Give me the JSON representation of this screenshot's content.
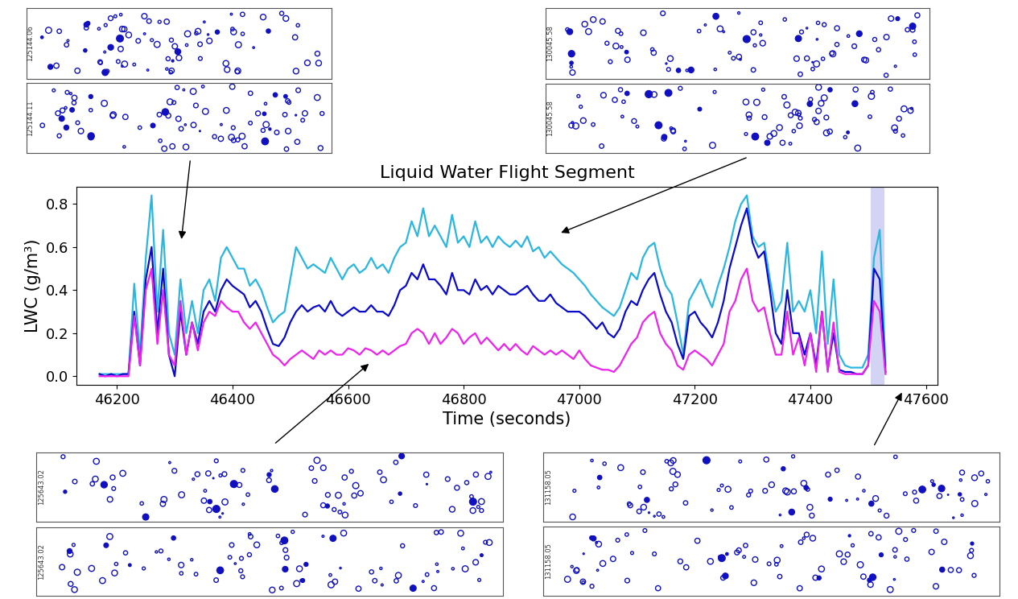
{
  "chart_data": {
    "type": "line",
    "title": "Liquid Water Flight Segment",
    "x_label": "Time (seconds)",
    "y_label": "LWC (g/m³)",
    "x": [
      46170,
      46180,
      46190,
      46200,
      46210,
      46220,
      46230,
      46240,
      46250,
      46260,
      46270,
      46280,
      46290,
      46300,
      46310,
      46320,
      46330,
      46340,
      46350,
      46360,
      46370,
      46380,
      46390,
      46400,
      46410,
      46420,
      46430,
      46440,
      46450,
      46460,
      46470,
      46480,
      46490,
      46500,
      46510,
      46520,
      46530,
      46540,
      46550,
      46560,
      46570,
      46580,
      46590,
      46600,
      46610,
      46620,
      46630,
      46640,
      46650,
      46660,
      46670,
      46680,
      46690,
      46700,
      46710,
      46720,
      46730,
      46740,
      46750,
      46760,
      46770,
      46780,
      46790,
      46800,
      46810,
      46820,
      46830,
      46840,
      46850,
      46860,
      46870,
      46880,
      46890,
      46900,
      46910,
      46920,
      46930,
      46940,
      46950,
      46960,
      46970,
      46980,
      46990,
      47000,
      47010,
      47020,
      47030,
      47040,
      47050,
      47060,
      47070,
      47080,
      47090,
      47100,
      47110,
      47120,
      47130,
      47140,
      47150,
      47160,
      47170,
      47180,
      47190,
      47200,
      47210,
      47220,
      47230,
      47240,
      47250,
      47260,
      47270,
      47280,
      47290,
      47300,
      47310,
      47320,
      47330,
      47340,
      47350,
      47360,
      47370,
      47380,
      47390,
      47400,
      47410,
      47420,
      47430,
      47440,
      47450,
      47460,
      47470,
      47480,
      47490,
      47500,
      47510,
      47520,
      47530
    ],
    "series": [
      {
        "color": "#29b6e0",
        "values": [
          0.01,
          0.01,
          0.01,
          0.01,
          0.01,
          0.01,
          0.43,
          0.1,
          0.55,
          0.84,
          0.3,
          0.68,
          0.2,
          0.1,
          0.45,
          0.2,
          0.35,
          0.2,
          0.4,
          0.45,
          0.35,
          0.55,
          0.6,
          0.55,
          0.5,
          0.5,
          0.42,
          0.45,
          0.4,
          0.32,
          0.25,
          0.28,
          0.3,
          0.45,
          0.6,
          0.55,
          0.5,
          0.52,
          0.5,
          0.48,
          0.55,
          0.5,
          0.45,
          0.5,
          0.52,
          0.48,
          0.5,
          0.55,
          0.5,
          0.52,
          0.48,
          0.55,
          0.6,
          0.62,
          0.72,
          0.65,
          0.78,
          0.65,
          0.7,
          0.65,
          0.6,
          0.75,
          0.62,
          0.65,
          0.6,
          0.72,
          0.62,
          0.65,
          0.6,
          0.65,
          0.62,
          0.6,
          0.63,
          0.6,
          0.65,
          0.58,
          0.6,
          0.55,
          0.58,
          0.55,
          0.52,
          0.5,
          0.48,
          0.45,
          0.42,
          0.38,
          0.35,
          0.32,
          0.3,
          0.28,
          0.32,
          0.4,
          0.48,
          0.45,
          0.55,
          0.6,
          0.62,
          0.5,
          0.42,
          0.38,
          0.25,
          0.1,
          0.35,
          0.4,
          0.45,
          0.38,
          0.32,
          0.42,
          0.5,
          0.6,
          0.72,
          0.8,
          0.84,
          0.65,
          0.6,
          0.62,
          0.45,
          0.3,
          0.35,
          0.62,
          0.3,
          0.35,
          0.3,
          0.4,
          0.2,
          0.58,
          0.15,
          0.45,
          0.1,
          0.05,
          0.04,
          0.04,
          0.04,
          0.1,
          0.55,
          0.68,
          0.05
        ]
      },
      {
        "color": "#0a0acc",
        "values": [
          0.01,
          0,
          0.01,
          0,
          0.01,
          0.01,
          0.3,
          0.05,
          0.45,
          0.6,
          0.2,
          0.5,
          0.1,
          0.0,
          0.3,
          0.1,
          0.25,
          0.15,
          0.3,
          0.35,
          0.3,
          0.4,
          0.45,
          0.42,
          0.4,
          0.38,
          0.32,
          0.35,
          0.3,
          0.22,
          0.15,
          0.14,
          0.18,
          0.25,
          0.3,
          0.33,
          0.3,
          0.32,
          0.33,
          0.3,
          0.35,
          0.3,
          0.28,
          0.3,
          0.32,
          0.3,
          0.3,
          0.33,
          0.3,
          0.3,
          0.28,
          0.33,
          0.4,
          0.42,
          0.48,
          0.45,
          0.52,
          0.45,
          0.45,
          0.42,
          0.38,
          0.48,
          0.4,
          0.4,
          0.38,
          0.45,
          0.4,
          0.42,
          0.38,
          0.42,
          0.4,
          0.38,
          0.38,
          0.4,
          0.42,
          0.38,
          0.35,
          0.35,
          0.38,
          0.34,
          0.32,
          0.3,
          0.3,
          0.3,
          0.28,
          0.25,
          0.22,
          0.25,
          0.2,
          0.18,
          0.22,
          0.3,
          0.35,
          0.33,
          0.4,
          0.45,
          0.48,
          0.38,
          0.3,
          0.25,
          0.15,
          0.08,
          0.28,
          0.3,
          0.25,
          0.22,
          0.18,
          0.25,
          0.35,
          0.5,
          0.6,
          0.7,
          0.78,
          0.62,
          0.55,
          0.58,
          0.4,
          0.2,
          0.15,
          0.4,
          0.2,
          0.2,
          0.1,
          0.2,
          0.05,
          0.3,
          0.03,
          0.2,
          0.03,
          0.02,
          0.02,
          0.01,
          0.01,
          0.05,
          0.5,
          0.45,
          0.02
        ]
      },
      {
        "color": "#ee22ee",
        "values": [
          0,
          0,
          0,
          0,
          0,
          0,
          0.28,
          0.05,
          0.4,
          0.5,
          0.15,
          0.4,
          0.1,
          0.05,
          0.35,
          0.1,
          0.25,
          0.12,
          0.25,
          0.3,
          0.28,
          0.35,
          0.32,
          0.3,
          0.3,
          0.25,
          0.22,
          0.25,
          0.2,
          0.15,
          0.1,
          0.08,
          0.05,
          0.08,
          0.1,
          0.12,
          0.1,
          0.08,
          0.12,
          0.1,
          0.12,
          0.1,
          0.1,
          0.13,
          0.12,
          0.1,
          0.13,
          0.12,
          0.1,
          0.12,
          0.1,
          0.12,
          0.14,
          0.15,
          0.2,
          0.22,
          0.2,
          0.15,
          0.2,
          0.15,
          0.18,
          0.22,
          0.2,
          0.15,
          0.18,
          0.2,
          0.15,
          0.18,
          0.15,
          0.12,
          0.15,
          0.12,
          0.15,
          0.12,
          0.1,
          0.14,
          0.12,
          0.1,
          0.12,
          0.1,
          0.12,
          0.1,
          0.08,
          0.12,
          0.08,
          0.05,
          0.04,
          0.03,
          0.03,
          0.02,
          0.05,
          0.1,
          0.15,
          0.18,
          0.25,
          0.28,
          0.3,
          0.2,
          0.15,
          0.12,
          0.05,
          0.03,
          0.1,
          0.12,
          0.1,
          0.08,
          0.05,
          0.1,
          0.15,
          0.3,
          0.35,
          0.45,
          0.5,
          0.35,
          0.3,
          0.32,
          0.2,
          0.1,
          0.1,
          0.3,
          0.1,
          0.18,
          0.05,
          0.2,
          0.02,
          0.3,
          0.02,
          0.25,
          0.02,
          0.01,
          0.01,
          0.01,
          0.01,
          0.05,
          0.35,
          0.3,
          0.01
        ]
      }
    ],
    "xlim": [
      46130,
      47620
    ],
    "xticks": [
      46200,
      46400,
      46600,
      46800,
      47000,
      47200,
      47400,
      47600
    ],
    "ylim": [
      -0.04,
      0.88
    ],
    "yticks": [
      {
        "value": 0,
        "label": "0.0"
      },
      0.2,
      0.4,
      0.6,
      0.8
    ],
    "shaded_span": [
      47505,
      47528
    ],
    "grid": false
  },
  "image_panels": [
    {
      "labels": [
        "125144.06",
        "125144.11"
      ]
    },
    {
      "labels": [
        "130045.58",
        "130045.58"
      ]
    },
    {
      "labels": [
        "125643.02",
        "125643.02"
      ]
    },
    {
      "labels": [
        "131158.05",
        "131158.05"
      ]
    }
  ]
}
